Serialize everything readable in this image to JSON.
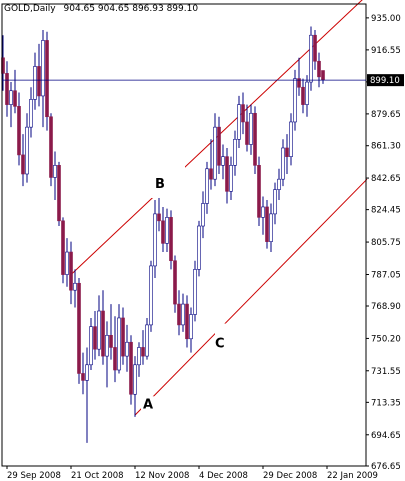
{
  "chart_data": {
    "type": "candlestick",
    "symbol": "GOLD,Daily",
    "ohlc_header": "904.65 904.65 896.93 899.10",
    "current_price": "899.10",
    "ylim": [
      676.65,
      943.0
    ],
    "yticks": [
      "935.00",
      "916.55",
      "898.10",
      "879.65",
      "861.30",
      "842.65",
      "824.45",
      "805.75",
      "787.05",
      "768.90",
      "750.20",
      "731.55",
      "713.35",
      "694.65",
      "676.65"
    ],
    "xlabels": [
      {
        "label": "29 Sep 2008",
        "bar": 1
      },
      {
        "label": "21 Oct 2008",
        "bar": 17
      },
      {
        "label": "12 Nov 2008",
        "bar": 33
      },
      {
        "label": "4 Dec 2008",
        "bar": 49
      },
      {
        "label": "29 Dec 2008",
        "bar": 65
      },
      {
        "label": "22 Jan 2009",
        "bar": 81
      }
    ],
    "bar_spacing_units": 4,
    "candles": [
      {
        "o": 912,
        "h": 925,
        "l": 893,
        "c": 903
      },
      {
        "o": 903,
        "h": 910,
        "l": 878,
        "c": 885
      },
      {
        "o": 885,
        "h": 898,
        "l": 872,
        "c": 893
      },
      {
        "o": 893,
        "h": 905,
        "l": 880,
        "c": 884
      },
      {
        "o": 884,
        "h": 892,
        "l": 850,
        "c": 856
      },
      {
        "o": 856,
        "h": 868,
        "l": 838,
        "c": 845
      },
      {
        "o": 845,
        "h": 880,
        "l": 840,
        "c": 872
      },
      {
        "o": 872,
        "h": 895,
        "l": 866,
        "c": 888
      },
      {
        "o": 888,
        "h": 915,
        "l": 882,
        "c": 907
      },
      {
        "o": 907,
        "h": 920,
        "l": 884,
        "c": 890
      },
      {
        "o": 890,
        "h": 928,
        "l": 872,
        "c": 922
      },
      {
        "o": 922,
        "h": 927,
        "l": 870,
        "c": 878
      },
      {
        "o": 878,
        "h": 880,
        "l": 838,
        "c": 843
      },
      {
        "o": 843,
        "h": 858,
        "l": 830,
        "c": 850
      },
      {
        "o": 850,
        "h": 852,
        "l": 815,
        "c": 818
      },
      {
        "o": 818,
        "h": 820,
        "l": 782,
        "c": 787
      },
      {
        "o": 787,
        "h": 808,
        "l": 780,
        "c": 800
      },
      {
        "o": 800,
        "h": 806,
        "l": 770,
        "c": 778
      },
      {
        "o": 778,
        "h": 790,
        "l": 768,
        "c": 782
      },
      {
        "o": 782,
        "h": 785,
        "l": 724,
        "c": 730
      },
      {
        "o": 730,
        "h": 742,
        "l": 718,
        "c": 726
      },
      {
        "o": 726,
        "h": 745,
        "l": 690,
        "c": 735
      },
      {
        "o": 735,
        "h": 762,
        "l": 732,
        "c": 757
      },
      {
        "o": 757,
        "h": 766,
        "l": 738,
        "c": 744
      },
      {
        "o": 744,
        "h": 775,
        "l": 740,
        "c": 766
      },
      {
        "o": 766,
        "h": 778,
        "l": 735,
        "c": 740
      },
      {
        "o": 740,
        "h": 760,
        "l": 722,
        "c": 752
      },
      {
        "o": 752,
        "h": 770,
        "l": 738,
        "c": 745
      },
      {
        "o": 745,
        "h": 763,
        "l": 725,
        "c": 732
      },
      {
        "o": 732,
        "h": 770,
        "l": 730,
        "c": 762
      },
      {
        "o": 762,
        "h": 768,
        "l": 735,
        "c": 740
      },
      {
        "o": 740,
        "h": 758,
        "l": 731,
        "c": 748
      },
      {
        "o": 748,
        "h": 752,
        "l": 712,
        "c": 718
      },
      {
        "o": 718,
        "h": 740,
        "l": 705,
        "c": 735
      },
      {
        "o": 735,
        "h": 748,
        "l": 728,
        "c": 745
      },
      {
        "o": 745,
        "h": 755,
        "l": 735,
        "c": 740
      },
      {
        "o": 740,
        "h": 762,
        "l": 738,
        "c": 758
      },
      {
        "o": 758,
        "h": 795,
        "l": 754,
        "c": 792
      },
      {
        "o": 792,
        "h": 830,
        "l": 785,
        "c": 822
      },
      {
        "o": 822,
        "h": 833,
        "l": 812,
        "c": 818
      },
      {
        "o": 818,
        "h": 826,
        "l": 800,
        "c": 805
      },
      {
        "o": 805,
        "h": 825,
        "l": 800,
        "c": 820
      },
      {
        "o": 820,
        "h": 824,
        "l": 790,
        "c": 795
      },
      {
        "o": 795,
        "h": 798,
        "l": 765,
        "c": 770
      },
      {
        "o": 770,
        "h": 778,
        "l": 752,
        "c": 758
      },
      {
        "o": 758,
        "h": 776,
        "l": 754,
        "c": 770
      },
      {
        "o": 770,
        "h": 775,
        "l": 745,
        "c": 750
      },
      {
        "o": 750,
        "h": 768,
        "l": 742,
        "c": 764
      },
      {
        "o": 764,
        "h": 795,
        "l": 760,
        "c": 790
      },
      {
        "o": 790,
        "h": 818,
        "l": 786,
        "c": 815
      },
      {
        "o": 815,
        "h": 835,
        "l": 808,
        "c": 828
      },
      {
        "o": 828,
        "h": 852,
        "l": 822,
        "c": 848
      },
      {
        "o": 848,
        "h": 865,
        "l": 836,
        "c": 842
      },
      {
        "o": 842,
        "h": 880,
        "l": 838,
        "c": 872
      },
      {
        "o": 872,
        "h": 878,
        "l": 845,
        "c": 850
      },
      {
        "o": 850,
        "h": 862,
        "l": 842,
        "c": 855
      },
      {
        "o": 855,
        "h": 860,
        "l": 828,
        "c": 835
      },
      {
        "o": 835,
        "h": 855,
        "l": 830,
        "c": 850
      },
      {
        "o": 850,
        "h": 870,
        "l": 844,
        "c": 865
      },
      {
        "o": 865,
        "h": 890,
        "l": 860,
        "c": 885
      },
      {
        "o": 885,
        "h": 892,
        "l": 868,
        "c": 875
      },
      {
        "o": 875,
        "h": 885,
        "l": 858,
        "c": 862
      },
      {
        "o": 862,
        "h": 885,
        "l": 856,
        "c": 880
      },
      {
        "o": 880,
        "h": 884,
        "l": 845,
        "c": 850
      },
      {
        "o": 850,
        "h": 855,
        "l": 815,
        "c": 820
      },
      {
        "o": 820,
        "h": 832,
        "l": 810,
        "c": 826
      },
      {
        "o": 826,
        "h": 830,
        "l": 802,
        "c": 806
      },
      {
        "o": 806,
        "h": 828,
        "l": 800,
        "c": 822
      },
      {
        "o": 822,
        "h": 840,
        "l": 816,
        "c": 836
      },
      {
        "o": 836,
        "h": 848,
        "l": 830,
        "c": 842
      },
      {
        "o": 842,
        "h": 865,
        "l": 838,
        "c": 860
      },
      {
        "o": 860,
        "h": 868,
        "l": 845,
        "c": 855
      },
      {
        "o": 855,
        "h": 880,
        "l": 850,
        "c": 875
      },
      {
        "o": 875,
        "h": 905,
        "l": 870,
        "c": 900
      },
      {
        "o": 900,
        "h": 912,
        "l": 890,
        "c": 895
      },
      {
        "o": 895,
        "h": 900,
        "l": 880,
        "c": 885
      },
      {
        "o": 885,
        "h": 902,
        "l": 878,
        "c": 898
      },
      {
        "o": 898,
        "h": 930,
        "l": 893,
        "c": 925
      },
      {
        "o": 925,
        "h": 928,
        "l": 905,
        "c": 910
      },
      {
        "o": 910,
        "h": 915,
        "l": 895,
        "c": 901
      },
      {
        "o": 904.65,
        "h": 904.65,
        "l": 896.93,
        "c": 899.1
      }
    ],
    "trendlines": [
      {
        "name": "upper-channel",
        "from": {
          "bar": 17,
          "price": 787
        },
        "to": {
          "bar": 91,
          "price": 948
        }
      },
      {
        "name": "lower-channel",
        "from": {
          "bar": 33,
          "price": 706
        },
        "to": {
          "bar": 91,
          "price": 842
        }
      }
    ],
    "annotations": [
      {
        "text": "A",
        "bar": 34,
        "price": 718
      },
      {
        "text": "B",
        "bar": 37,
        "price": 845
      },
      {
        "text": "C",
        "bar": 52,
        "price": 753
      }
    ],
    "colors": {
      "background": "#ffffff",
      "bull_body": "#ffffff",
      "bear_body": "#8b1a4a",
      "wick": "#000080",
      "trendline": "#cc0000",
      "current_line": "#000080"
    }
  }
}
